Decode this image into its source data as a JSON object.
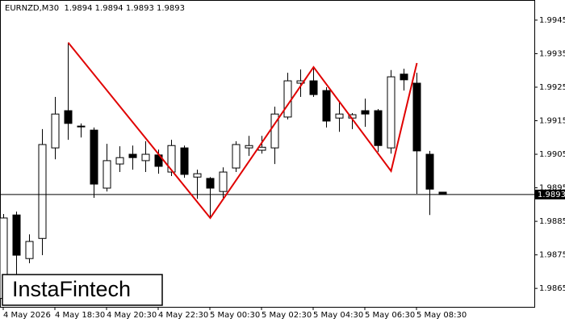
{
  "chart_data": {
    "type": "candlestick",
    "title": "EURNZD,M30  1.9894 1.9894 1.9893 1.9893",
    "categories": [
      "4 May 2026",
      null,
      null,
      null,
      "4 May 18:30",
      null,
      null,
      null,
      "4 May 20:30",
      null,
      null,
      null,
      "4 May 22:30",
      null,
      null,
      null,
      "5 May 00:30",
      null,
      null,
      null,
      "5 May 02:30",
      null,
      null,
      null,
      "5 May 04:30",
      null,
      null,
      null,
      "5 May 06:30",
      null,
      null,
      null,
      "5 May 08:30",
      null,
      null
    ],
    "open": [
      1.9862,
      1.98869,
      1.98739,
      1.98799,
      1.99069,
      1.9918,
      1.99134,
      1.99122,
      1.98949,
      1.99021,
      1.9905,
      1.99031,
      1.99048,
      1.98997,
      1.99069,
      1.98982,
      1.98978,
      1.98939,
      1.99009,
      1.99069,
      1.99062,
      1.99069,
      1.99161,
      1.99262,
      1.99269,
      1.9924,
      1.99158,
      1.99158,
      1.9918,
      1.9918,
      1.99069,
      1.99289,
      1.99262,
      1.9905,
      1.98937
    ],
    "high": [
      1.98872,
      1.98879,
      1.98811,
      1.99125,
      1.99221,
      1.99383,
      1.99142,
      1.9913,
      1.99081,
      1.99074,
      1.99076,
      1.99089,
      1.99064,
      1.99093,
      1.99076,
      1.99004,
      1.98982,
      1.99011,
      1.99089,
      1.99105,
      1.99105,
      1.99192,
      1.99293,
      1.99303,
      1.99305,
      1.9925,
      1.99209,
      1.99173,
      1.99216,
      1.99185,
      1.99301,
      1.99305,
      1.99293,
      1.9906,
      1.98937
    ],
    "low": [
      1.986,
      1.98686,
      1.98725,
      1.98749,
      1.99035,
      1.99093,
      1.991,
      1.9892,
      1.98939,
      1.98997,
      1.99004,
      1.98997,
      1.98992,
      1.98985,
      1.9898,
      1.98917,
      1.98864,
      1.9892,
      1.98997,
      1.99045,
      1.99052,
      1.99021,
      1.99154,
      1.99221,
      1.99221,
      1.9913,
      1.99117,
      1.99125,
      1.99132,
      1.99057,
      1.99052,
      1.9924,
      1.98932,
      1.98869,
      1.9893
    ],
    "close": [
      1.9886,
      1.98749,
      1.9879,
      1.99079,
      1.9917,
      1.99142,
      1.99132,
      1.98961,
      1.99031,
      1.9904,
      1.9904,
      1.9905,
      1.99014,
      1.99076,
      1.9899,
      1.98992,
      1.98949,
      1.98997,
      1.99079,
      1.99076,
      1.99071,
      1.9917,
      1.99269,
      1.99269,
      1.99228,
      1.99149,
      1.9917,
      1.99168,
      1.9917,
      1.99076,
      1.99281,
      1.99272,
      1.9906,
      1.98946,
      1.9893
    ],
    "up_color": "#ffffff",
    "down_color": "#000000",
    "ylim": [
      1.98595,
      1.9951
    ],
    "yticks": [
      1.9865,
      1.9875,
      1.9885,
      1.9895,
      1.9905,
      1.9915,
      1.9925,
      1.9935,
      1.9945
    ],
    "last_price": 1.9893,
    "pattern_color": "#e00000",
    "pattern_x": [
      5,
      16,
      24,
      30,
      32
    ],
    "pattern_y": [
      1.99383,
      1.9886,
      1.9931,
      1.99,
      1.99322
    ]
  },
  "logo": "InstaFintech"
}
